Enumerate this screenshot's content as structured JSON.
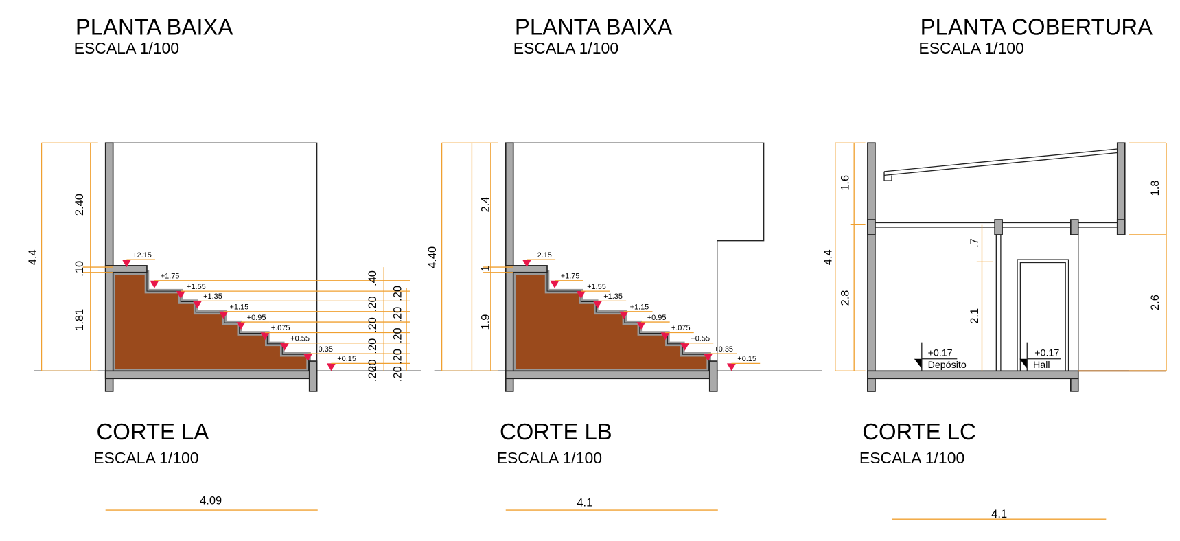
{
  "plans": [
    {
      "title": "PLANTA BAIXA",
      "scale": "ESCALA 1/100"
    },
    {
      "title": "PLANTA BAIXA",
      "scale": "ESCALA 1/100"
    },
    {
      "title": "PLANTA COBERTURA",
      "scale": "ESCALA 1/100"
    }
  ],
  "sections": [
    {
      "title": "CORTE LA",
      "scale": "ESCALA 1/100",
      "left_dimensions": [
        "4.4",
        "2.40",
        ".10",
        "1.81"
      ],
      "right_dimensions": [
        ".40",
        ".20",
        ".20",
        ".20",
        ".20",
        ".20",
        ".20",
        ".20",
        ".20",
        ".20",
        ".20"
      ],
      "levels": [
        "+2.15",
        "+1.75",
        "+1.55",
        "+1.35",
        "+1.15",
        "+0.95",
        "+.075",
        "+0.55",
        "+0.35",
        "+0.15"
      ],
      "width": "4.09"
    },
    {
      "title": "CORTE LB",
      "scale": "ESCALA 1/100",
      "left_dimensions": [
        "4.40",
        "2.4",
        "1",
        "1.9"
      ],
      "levels": [
        "+2.15",
        "+1.75",
        "+1.55",
        "+1.35",
        "+1.15",
        "+0.95",
        "+.075",
        "+0.55",
        "+0.35",
        "+0.15"
      ],
      "width": "4.1"
    },
    {
      "title": "CORTE LC",
      "scale": "ESCALA 1/100",
      "left_dimensions": [
        "4.4",
        "1.6",
        "2.8",
        ".7",
        "2.1"
      ],
      "right_dimensions": [
        "1.8",
        "2.6"
      ],
      "rooms": [
        {
          "level": "+0.17",
          "name": "Depósito"
        },
        {
          "level": "+0.17",
          "name": "Hall"
        }
      ],
      "width": "4.1"
    }
  ]
}
